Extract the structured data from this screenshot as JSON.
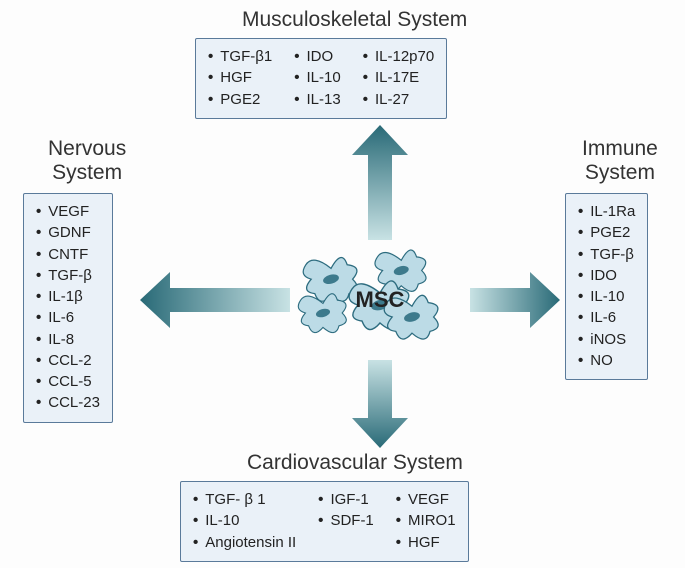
{
  "center_label": "MSC",
  "colors": {
    "box_bg": "#eaf1f8",
    "box_border": "#5a7a9a",
    "arrow_dark": "#296a77",
    "arrow_light": "#8fc3ca",
    "cell_fill": "#bcdbe6",
    "cell_stroke": "#2d6c7f",
    "cell_nucleus": "#3d7a8c",
    "text": "#222"
  },
  "systems": {
    "musculoskeletal": {
      "title": "Musculoskeletal System",
      "columns": [
        [
          "TGF-β1",
          "HGF",
          "PGE2"
        ],
        [
          "IDO",
          "IL-10",
          "IL-13"
        ],
        [
          "IL-12p70",
          "IL-17E",
          "IL-27"
        ]
      ]
    },
    "nervous": {
      "title_line1": "Nervous",
      "title_line2": "System",
      "columns": [
        [
          "VEGF",
          "GDNF",
          "CNTF",
          "TGF-β",
          "IL-1β",
          "IL-6",
          "IL-8",
          "CCL-2",
          "CCL-5",
          "CCL-23"
        ]
      ]
    },
    "immune": {
      "title_line1": "Immune",
      "title_line2": "System",
      "columns": [
        [
          "IL-1Ra",
          "PGE2",
          "TGF-β",
          "IDO",
          "IL-10",
          "IL-6",
          "iNOS",
          "NO"
        ]
      ]
    },
    "cardiovascular": {
      "title": "Cardiovascular System",
      "columns": [
        [
          "TGF- β 1",
          "IL-10",
          "Angiotensin II"
        ],
        [
          "IGF-1",
          "SDF-1"
        ],
        [
          "VEGF",
          "MIRO1",
          "HGF"
        ]
      ]
    }
  }
}
